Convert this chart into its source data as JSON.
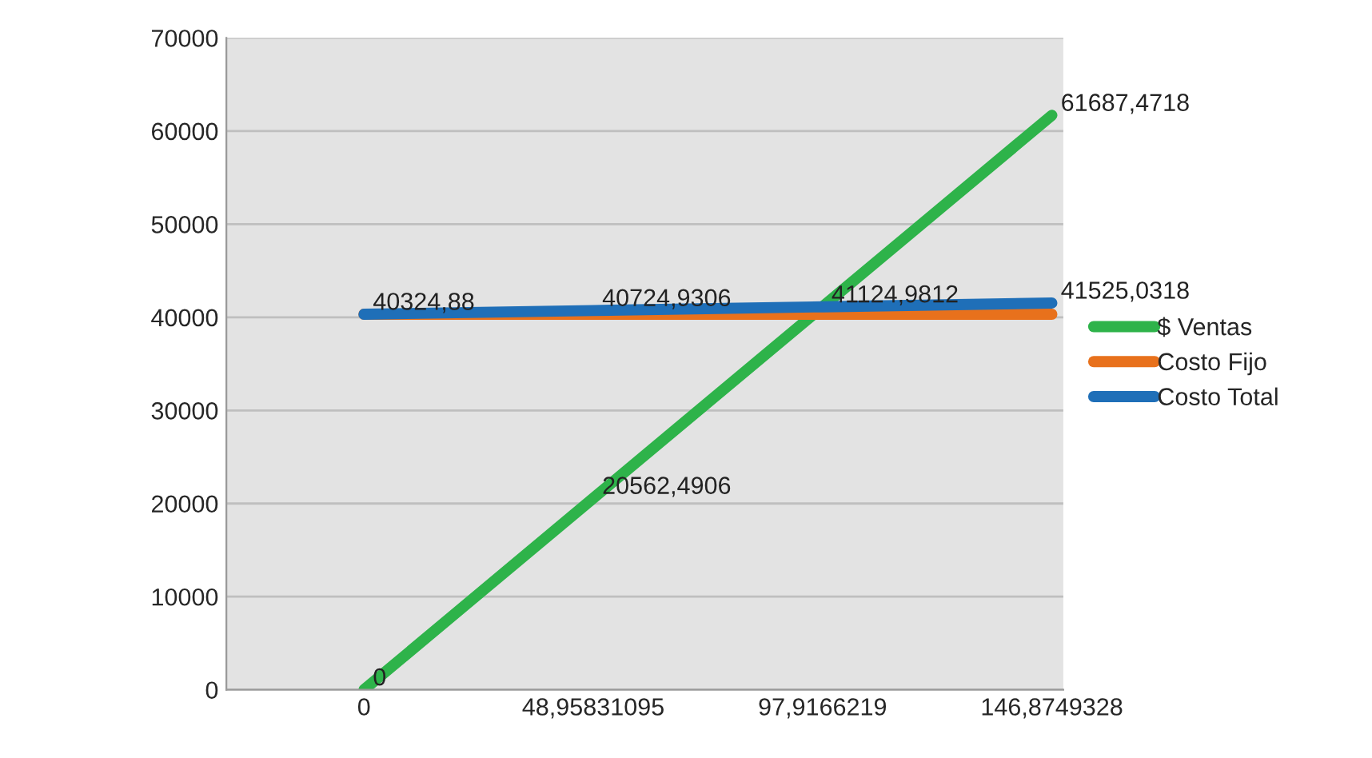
{
  "chart_data": {
    "type": "line",
    "categories": [
      "0",
      "48,95831095",
      "97,9166219",
      "146,8749328"
    ],
    "series": [
      {
        "name": "$ Ventas",
        "color": "#2eb34a",
        "values": [
          0,
          20562.4906,
          41124.9812,
          61687.4718
        ],
        "value_labels": [
          "0",
          "20562,4906",
          null,
          "61687,4718"
        ]
      },
      {
        "name": "Costo Fijo",
        "color": "#e8711c",
        "values": [
          40324.88,
          40324.88,
          40324.88,
          40324.88
        ]
      },
      {
        "name": "Costo Total",
        "color": "#1f6fb8",
        "values": [
          40324.88,
          40724.9306,
          41124.9812,
          41525.0318
        ],
        "value_labels": [
          "40324,88",
          "40724,9306",
          "41124,9812",
          "41525,0318"
        ]
      }
    ],
    "ylim": [
      0,
      70000
    ],
    "yticks": [
      0,
      10000,
      20000,
      30000,
      40000,
      50000,
      60000,
      70000
    ],
    "grid": "y",
    "legend": "right"
  }
}
